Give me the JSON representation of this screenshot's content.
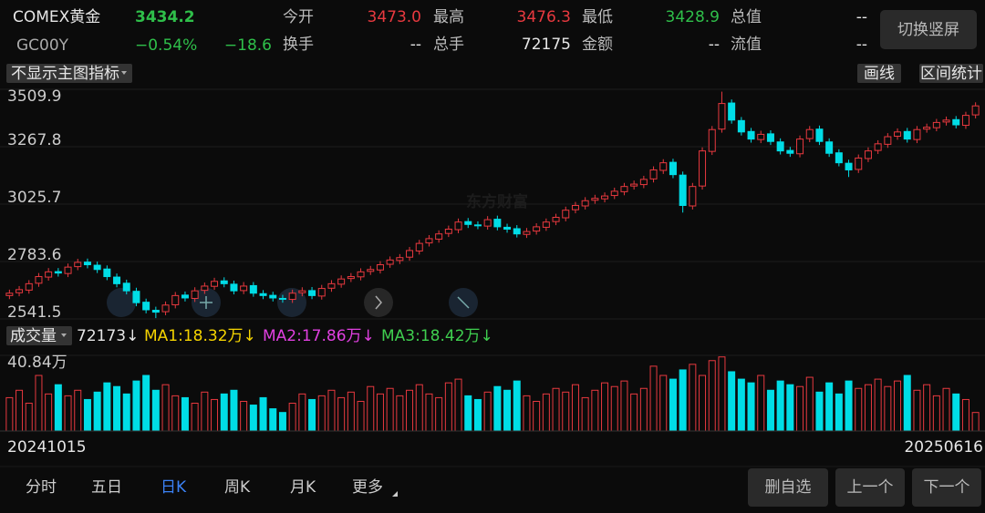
{
  "header": {
    "name": "COMEX黄金",
    "price": 3434.2,
    "change_pct": "−0.54%",
    "change": "−18.6",
    "code": "GC00Y",
    "stats": [
      {
        "label": "今开",
        "value": "3473.0",
        "color": "#e8393f"
      },
      {
        "label": "最高",
        "value": "3476.3",
        "color": "#e8393f"
      },
      {
        "label": "最低",
        "value": "3428.9",
        "color": "#2fbf4a"
      },
      {
        "label": "总值",
        "value": "--",
        "color": "#e6e6e6"
      },
      {
        "label": "换手",
        "value": "--",
        "color": "#e6e6e6"
      },
      {
        "label": "总手",
        "value": "72175",
        "color": "#e6e6e6"
      },
      {
        "label": "金额",
        "value": "--",
        "color": "#e6e6e6"
      },
      {
        "label": "流值",
        "value": "--",
        "color": "#e6e6e6"
      }
    ],
    "button": "切换竖屏"
  },
  "toolbar": {
    "indicator": "不显示主图指标",
    "draw": "画线",
    "range_stats": "区间统计"
  },
  "chart_data": [
    {
      "type": "candlestick",
      "watermark": "东方财富",
      "up_color": "#e8393f",
      "down_color": "#00dde6",
      "open": [
        2640,
        2652,
        2663,
        2692,
        2718,
        2741,
        2733,
        2762,
        2781,
        2768,
        2752,
        2718,
        2692,
        2658,
        2612,
        2578,
        2572,
        2601,
        2642,
        2628,
        2662,
        2679,
        2702,
        2688,
        2661,
        2682,
        2648,
        2641,
        2628,
        2624,
        2652,
        2661,
        2638,
        2671,
        2688,
        2712,
        2719,
        2742,
        2748,
        2772,
        2788,
        2802,
        2828,
        2862,
        2878,
        2902,
        2918,
        2952,
        2938,
        2933,
        2962,
        2928,
        2922,
        2898,
        2912,
        2928,
        2952,
        2968,
        3002,
        3018,
        3042,
        3048,
        3062,
        3078,
        3102,
        3108,
        3132,
        3168,
        3202,
        3148,
        3018,
        3102,
        3248,
        3342,
        3452,
        3378,
        3332,
        3298,
        3322,
        3288,
        3252,
        3238,
        3302,
        3342,
        3288,
        3242,
        3198,
        3172,
        3218,
        3252,
        3278,
        3312,
        3332,
        3298,
        3342,
        3348,
        3372,
        3382,
        3358,
        3402
      ],
      "high": [
        2665,
        2680,
        2705,
        2735,
        2756,
        2756,
        2775,
        2795,
        2796,
        2783,
        2767,
        2733,
        2707,
        2673,
        2627,
        2593,
        2615,
        2655,
        2657,
        2675,
        2695,
        2715,
        2717,
        2703,
        2697,
        2697,
        2663,
        2656,
        2643,
        2665,
        2675,
        2676,
        2685,
        2705,
        2725,
        2735,
        2755,
        2765,
        2785,
        2805,
        2815,
        2845,
        2875,
        2895,
        2915,
        2935,
        2965,
        2967,
        2953,
        2975,
        2977,
        2943,
        2937,
        2925,
        2945,
        2965,
        2985,
        3015,
        3035,
        3055,
        3065,
        3075,
        3095,
        3115,
        3125,
        3145,
        3185,
        3215,
        3217,
        3163,
        3115,
        3265,
        3355,
        3500,
        3467,
        3393,
        3347,
        3335,
        3337,
        3303,
        3267,
        3315,
        3355,
        3357,
        3303,
        3257,
        3213,
        3235,
        3265,
        3295,
        3325,
        3345,
        3347,
        3355,
        3365,
        3385,
        3395,
        3397,
        3415,
        3455
      ],
      "low": [
        2625,
        2637,
        2648,
        2677,
        2703,
        2720,
        2718,
        2747,
        2755,
        2735,
        2705,
        2675,
        2645,
        2595,
        2565,
        2545,
        2557,
        2586,
        2615,
        2613,
        2647,
        2664,
        2675,
        2645,
        2646,
        2635,
        2625,
        2615,
        2610,
        2609,
        2637,
        2625,
        2623,
        2656,
        2673,
        2697,
        2704,
        2727,
        2733,
        2757,
        2773,
        2787,
        2813,
        2847,
        2863,
        2887,
        2903,
        2925,
        2920,
        2918,
        2915,
        2905,
        2885,
        2883,
        2897,
        2913,
        2937,
        2953,
        2987,
        3003,
        3027,
        3033,
        3047,
        3063,
        3087,
        3093,
        3117,
        3153,
        3135,
        2990,
        3003,
        3087,
        3233,
        3327,
        3365,
        3315,
        3285,
        3283,
        3275,
        3235,
        3225,
        3223,
        3287,
        3275,
        3225,
        3185,
        3140,
        3157,
        3203,
        3237,
        3263,
        3297,
        3285,
        3283,
        3327,
        3333,
        3357,
        3345,
        3343,
        3387
      ],
      "close": [
        2650,
        2665,
        2690,
        2720,
        2740,
        2735,
        2760,
        2780,
        2770,
        2750,
        2720,
        2690,
        2660,
        2610,
        2580,
        2570,
        2600,
        2640,
        2630,
        2660,
        2680,
        2700,
        2690,
        2660,
        2680,
        2650,
        2640,
        2630,
        2625,
        2650,
        2660,
        2640,
        2670,
        2690,
        2710,
        2720,
        2740,
        2750,
        2770,
        2790,
        2800,
        2830,
        2860,
        2880,
        2900,
        2920,
        2950,
        2940,
        2935,
        2960,
        2930,
        2920,
        2900,
        2910,
        2930,
        2950,
        2970,
        3000,
        3020,
        3040,
        3050,
        3060,
        3080,
        3100,
        3110,
        3130,
        3170,
        3200,
        3150,
        3020,
        3100,
        3250,
        3340,
        3450,
        3380,
        3330,
        3300,
        3320,
        3290,
        3250,
        3240,
        3300,
        3340,
        3290,
        3240,
        3200,
        3170,
        3220,
        3250,
        3280,
        3310,
        3330,
        3300,
        3340,
        3350,
        3370,
        3380,
        3360,
        3400,
        3440
      ],
      "ylim": [
        2541.5,
        3509.9
      ],
      "yticks": [
        3509.9,
        3267.8,
        3025.7,
        2783.6,
        2541.5
      ]
    },
    {
      "type": "bar",
      "title": "成交量",
      "last": "72173↓",
      "ma": [
        {
          "label": "MA1:18.32万↓",
          "color": "#f5d400"
        },
        {
          "label": "MA2:17.86万↓",
          "color": "#e040e0"
        },
        {
          "label": "MA3:18.42万↓",
          "color": "#3fcf4f"
        }
      ],
      "values": [
        18,
        22,
        15,
        30,
        20,
        25,
        19,
        22,
        17,
        21,
        26,
        24,
        20,
        27,
        30,
        22,
        25,
        19,
        18,
        15,
        21,
        17,
        20,
        22,
        16,
        14,
        18,
        12,
        10,
        15,
        20,
        17,
        19,
        22,
        18,
        21,
        16,
        24,
        20,
        23,
        19,
        22,
        25,
        20,
        18,
        26,
        28,
        19,
        17,
        21,
        24,
        22,
        27,
        19,
        16,
        20,
        23,
        21,
        25,
        18,
        22,
        26,
        24,
        27,
        20,
        23,
        35,
        30,
        28,
        33,
        36,
        30,
        38,
        40,
        32,
        28,
        26,
        30,
        22,
        27,
        25,
        24,
        29,
        21,
        26,
        20,
        27,
        23,
        25,
        28,
        24,
        27,
        30,
        22,
        25,
        19,
        23,
        20,
        17,
        10
      ],
      "ylim": [
        0,
        40.84
      ],
      "yticks": [
        {
          "value": 40.84,
          "label": "40.84万"
        }
      ],
      "x_labels": [
        "20241015",
        "20250616"
      ]
    }
  ],
  "tabs": [
    "分时",
    "五日",
    "日K",
    "周K",
    "月K",
    "更多"
  ],
  "selected_tab": 2,
  "buttons": [
    "删自选",
    "上一个",
    "下一个"
  ]
}
